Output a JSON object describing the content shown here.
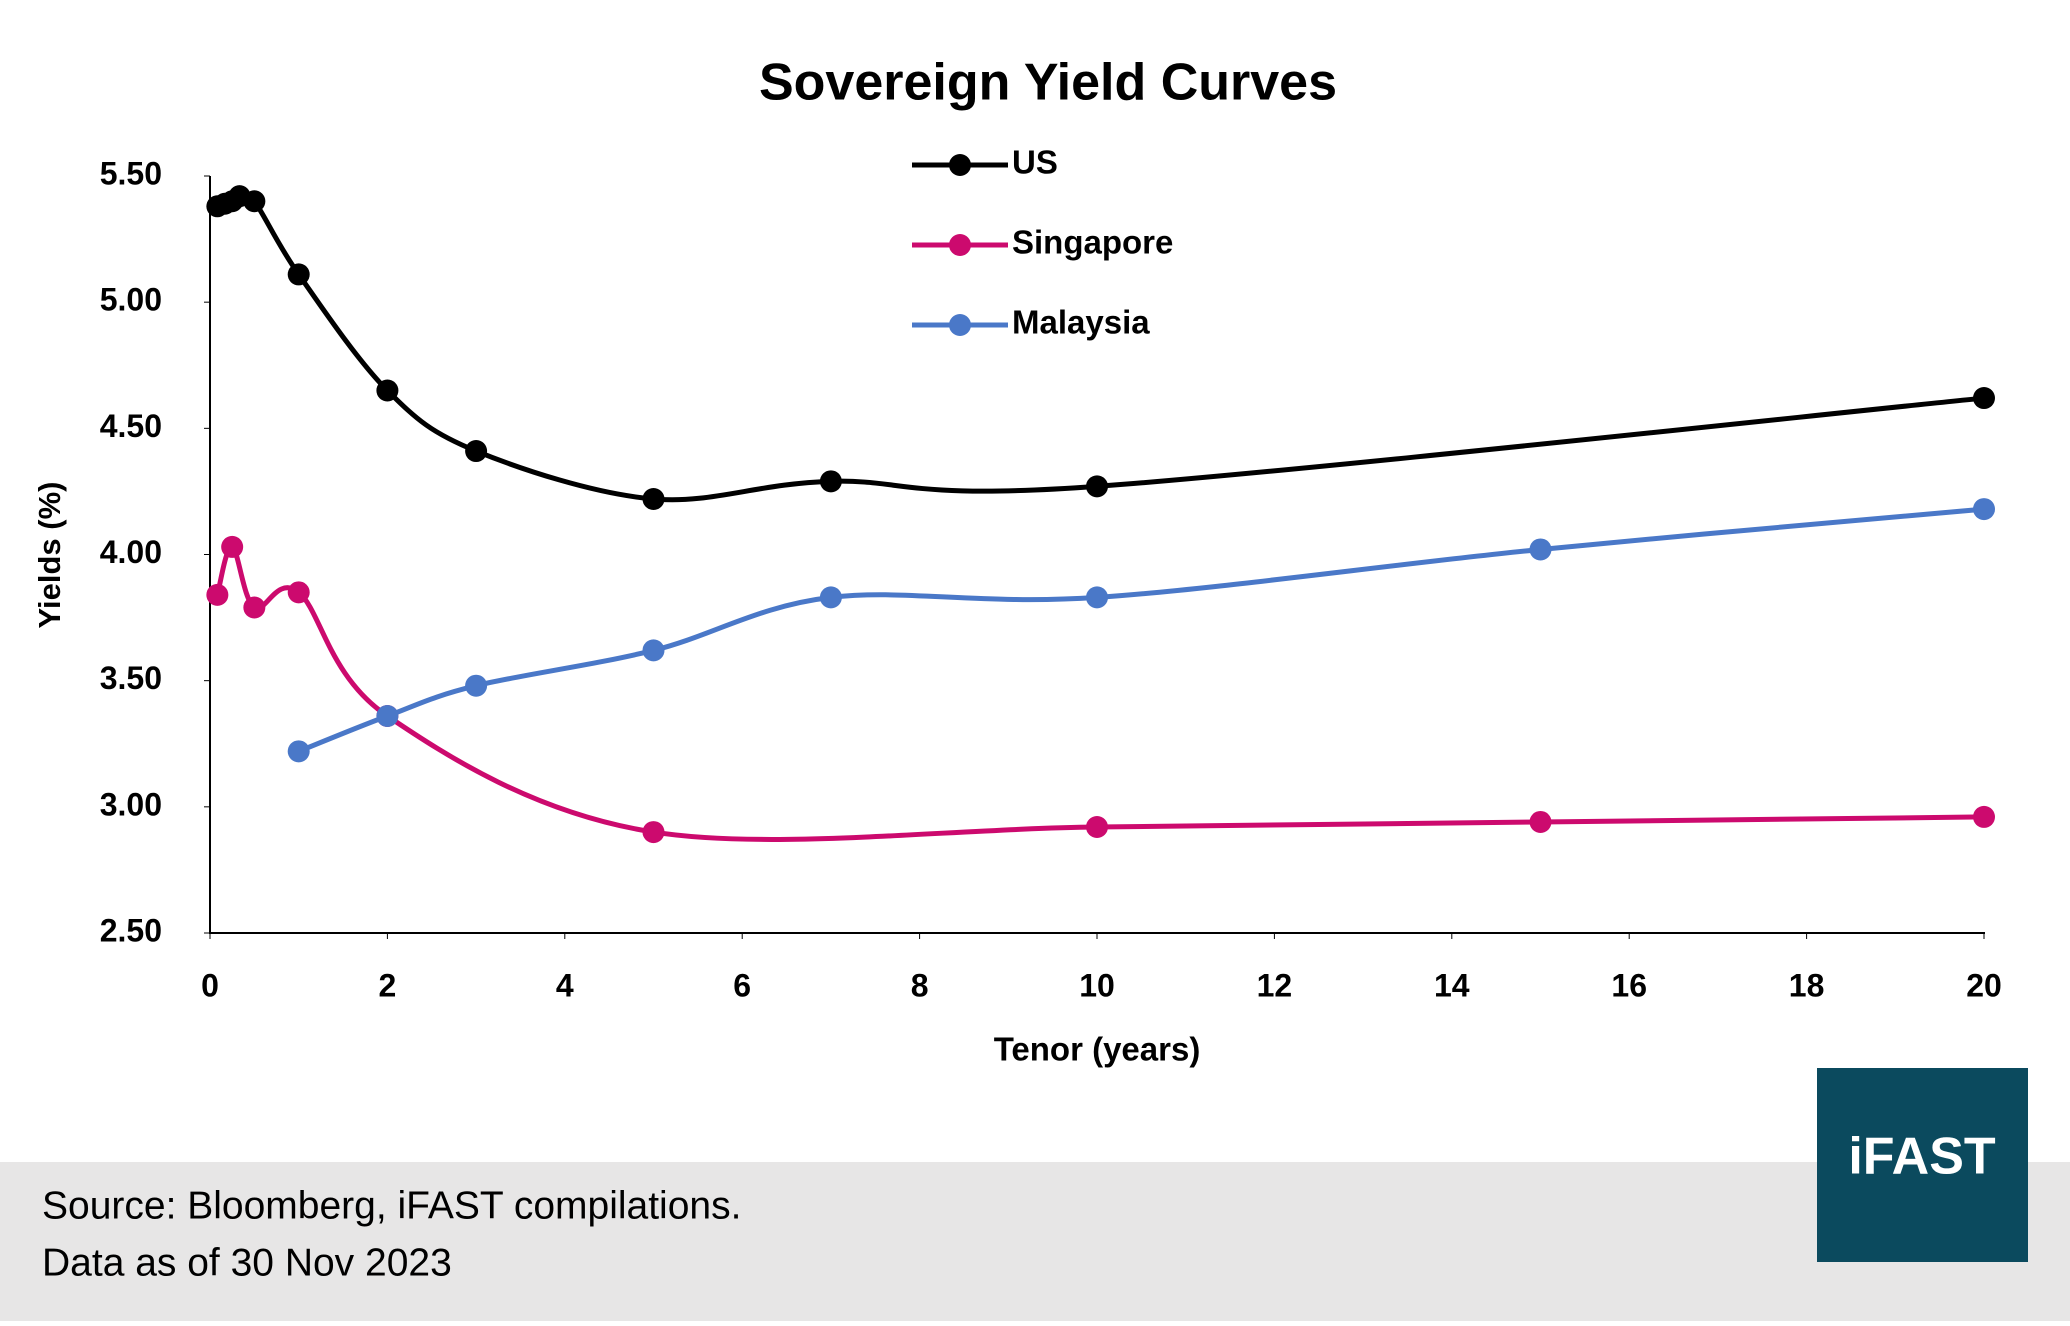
{
  "chart_data": {
    "type": "line",
    "title": "Sovereign Yield Curves",
    "x_label": "Tenor (years)",
    "y_label": "Yields (%)",
    "xlim": [
      0,
      20
    ],
    "xticks": [
      0,
      2,
      4,
      6,
      8,
      10,
      12,
      14,
      16,
      18,
      20
    ],
    "ylim": [
      2.5,
      5.5
    ],
    "yticks": [
      {
        "value": 2.5,
        "label": "2.50"
      },
      {
        "value": 3,
        "label": "3.00"
      },
      {
        "value": 3.5,
        "label": "3.50"
      },
      {
        "value": 4,
        "label": "4.00"
      },
      {
        "value": 4.5,
        "label": "4.50"
      },
      {
        "value": 5,
        "label": "5.00"
      },
      {
        "value": 5.5,
        "label": "5.50"
      }
    ],
    "grid": false,
    "smooth": true,
    "legend": "top-center",
    "series": [
      {
        "name": "US",
        "color": "#000000",
        "x": [
          0.083,
          0.167,
          0.25,
          0.333,
          0.5,
          1,
          2,
          3,
          5,
          7,
          10,
          20
        ],
        "values": [
          5.38,
          5.39,
          5.4,
          5.42,
          5.4,
          5.11,
          4.65,
          4.41,
          4.22,
          4.29,
          4.27,
          4.62
        ]
      },
      {
        "name": "Singapore",
        "color": "#cc0a6e",
        "x": [
          0.083,
          0.25,
          0.5,
          1,
          2,
          5,
          10,
          15,
          20
        ],
        "values": [
          3.84,
          4.03,
          3.79,
          3.85,
          3.36,
          2.9,
          2.92,
          2.94,
          2.96
        ]
      },
      {
        "name": "Malaysia",
        "color": "#4a78c8",
        "x": [
          1,
          2,
          3,
          5,
          7,
          10,
          15,
          20
        ],
        "values": [
          3.22,
          3.36,
          3.48,
          3.62,
          3.83,
          3.83,
          4.02,
          4.18
        ]
      }
    ]
  },
  "footer": {
    "source": "Source: Bloomberg, iFAST compilations.",
    "date": "Data as of 30 Nov 2023",
    "logo": "iFAST"
  }
}
